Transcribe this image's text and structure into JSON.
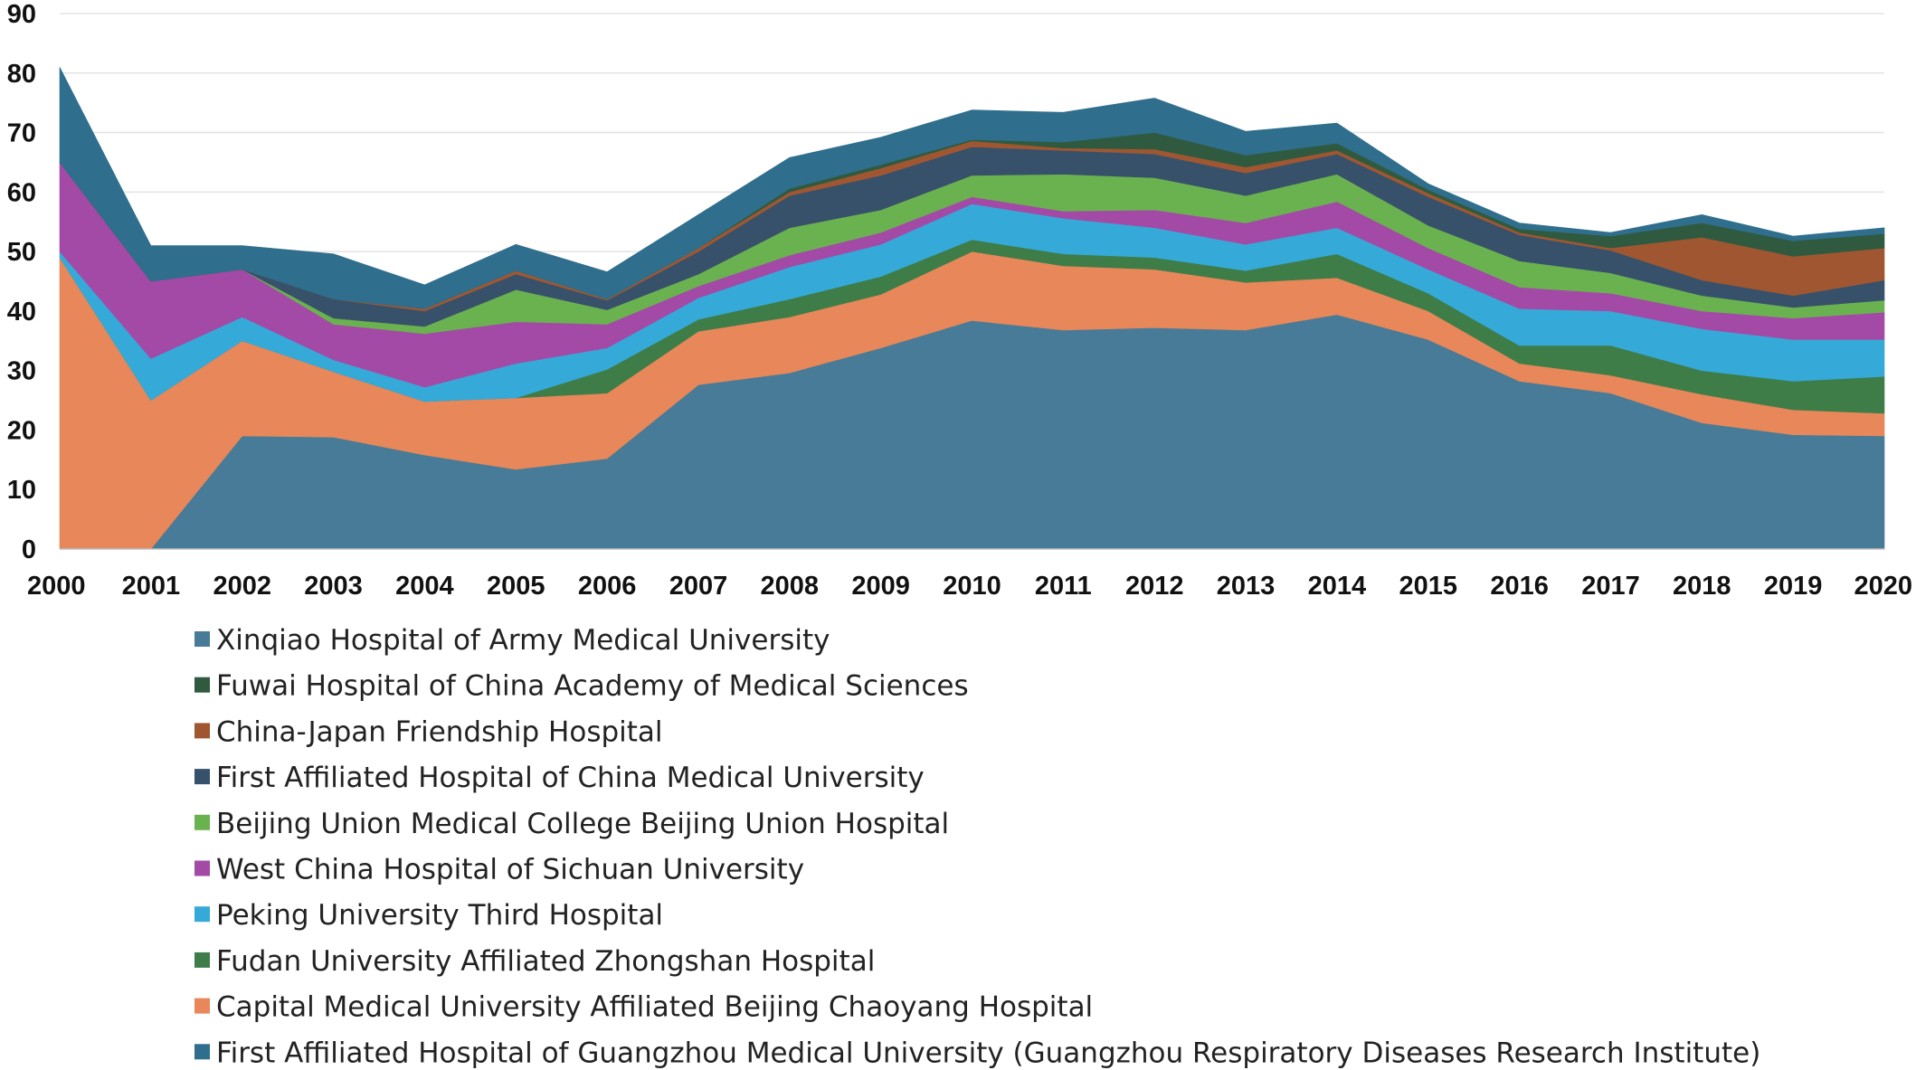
{
  "chart_data": {
    "type": "area",
    "stacked": true,
    "title": "",
    "xlabel": "",
    "ylabel": "",
    "ylim": [
      0,
      90
    ],
    "yticks": [
      0,
      10,
      20,
      30,
      40,
      50,
      60,
      70,
      80,
      90
    ],
    "grid": true,
    "legend_position": "bottom",
    "x": [
      "2000",
      "2001",
      "2002",
      "2003",
      "2004",
      "2005",
      "2006",
      "2007",
      "2008",
      "2009",
      "2010",
      "2011",
      "2012",
      "2013",
      "2014",
      "2015",
      "2016",
      "2017",
      "2018",
      "2019",
      "2020"
    ],
    "series": [
      {
        "name": "Xinqiao Hospital of Army Medical University",
        "color": "#477b97",
        "values": [
          0,
          0,
          19,
          18.8,
          15.8,
          13.4,
          15.2,
          27.6,
          29.6,
          33.8,
          38.4,
          36.8,
          37.2,
          36.8,
          39.4,
          35.2,
          28.2,
          26.2,
          21.2,
          19.2,
          19
        ]
      },
      {
        "name": "Capital Medical University Affiliated Beijing Chaoyang Hospital",
        "color": "#e7875a",
        "values": [
          49,
          25,
          16,
          11,
          9,
          12,
          11,
          9,
          9.4,
          9,
          11.6,
          10.8,
          9.8,
          8,
          6.2,
          4.8,
          3,
          3,
          4.8,
          4.2,
          3.8
        ]
      },
      {
        "name": "Fudan University Affiliated Zhongshan Hospital",
        "color": "#3f7d48",
        "values": [
          0,
          0,
          0,
          0,
          0,
          0,
          4,
          2,
          3,
          3,
          2,
          2,
          2,
          2,
          4,
          3,
          3,
          5,
          4,
          4.8,
          6.2
        ]
      },
      {
        "name": "Peking University Third Hospital",
        "color": "#35aad9",
        "values": [
          1,
          7,
          4,
          2,
          2.4,
          5.8,
          3.6,
          3.6,
          5.4,
          5.4,
          6,
          6,
          5,
          4.4,
          4.4,
          4,
          6.2,
          5.8,
          7,
          7,
          6.2
        ]
      },
      {
        "name": "West China Hospital of Sichuan University",
        "color": "#a34aa6",
        "values": [
          15,
          13,
          8,
          6,
          9,
          7,
          4,
          2,
          2,
          2,
          1.2,
          1.2,
          3,
          3.6,
          4.4,
          3.6,
          3.6,
          3,
          3,
          3.6,
          4.6
        ]
      },
      {
        "name": "Beijing Union Medical College Beijing Union Hospital",
        "color": "#6ab250",
        "values": [
          0,
          0,
          0,
          1,
          1.2,
          5.4,
          2.4,
          2,
          4.6,
          3.8,
          3.6,
          6.2,
          5.4,
          4.6,
          4.6,
          3.8,
          4.4,
          3.4,
          2.6,
          1.8,
          2
        ]
      },
      {
        "name": "First Affiliated Hospital of China Medical University",
        "color": "#38516a",
        "values": [
          0,
          0,
          0,
          3.2,
          2.6,
          2.6,
          1.6,
          3.8,
          5.4,
          5.8,
          4.8,
          4,
          4,
          3.8,
          3.4,
          4.8,
          4.4,
          3.8,
          2.6,
          2,
          3.4
        ]
      },
      {
        "name": "China-Japan Friendship Hospital",
        "color": "#a05731",
        "values": [
          0,
          0,
          0,
          0,
          0.4,
          0.6,
          0.2,
          0.6,
          0.6,
          1.2,
          1,
          0.4,
          0.8,
          1,
          0.6,
          0.6,
          0.4,
          0.4,
          7.2,
          6.6,
          5.4
        ]
      },
      {
        "name": "Fuwai Hospital of China Academy of Medical Sciences",
        "color": "#305a3f",
        "values": [
          0,
          0,
          0,
          0,
          0,
          0,
          0,
          0,
          0.6,
          0.6,
          0.2,
          1,
          2.8,
          2,
          1.2,
          0.6,
          0.6,
          2,
          2.4,
          2.6,
          2.4
        ]
      },
      {
        "name": "First Affiliated Hospital of Guangzhou Medical University (Guangzhou Respiratory Diseases Research Institute)",
        "color": "#2f6e8c",
        "values": [
          16,
          6,
          4,
          7.6,
          4,
          4.4,
          4.6,
          5.6,
          5.2,
          4.6,
          5,
          5,
          5.8,
          4,
          3.4,
          1,
          1,
          0.6,
          1.4,
          0.8,
          1
        ]
      }
    ],
    "legend_order": [
      "Xinqiao Hospital of Army Medical University",
      "Fuwai Hospital of China Academy of Medical Sciences",
      "China-Japan Friendship Hospital",
      "First Affiliated Hospital of China Medical University",
      "Beijing Union Medical College Beijing Union Hospital",
      "West China Hospital of Sichuan University",
      "Peking University Third Hospital",
      "Fudan University Affiliated Zhongshan Hospital",
      "Capital Medical University Affiliated Beijing Chaoyang Hospital",
      "First Affiliated Hospital of Guangzhou Medical University (Guangzhou Respiratory Diseases Research Institute)"
    ]
  }
}
